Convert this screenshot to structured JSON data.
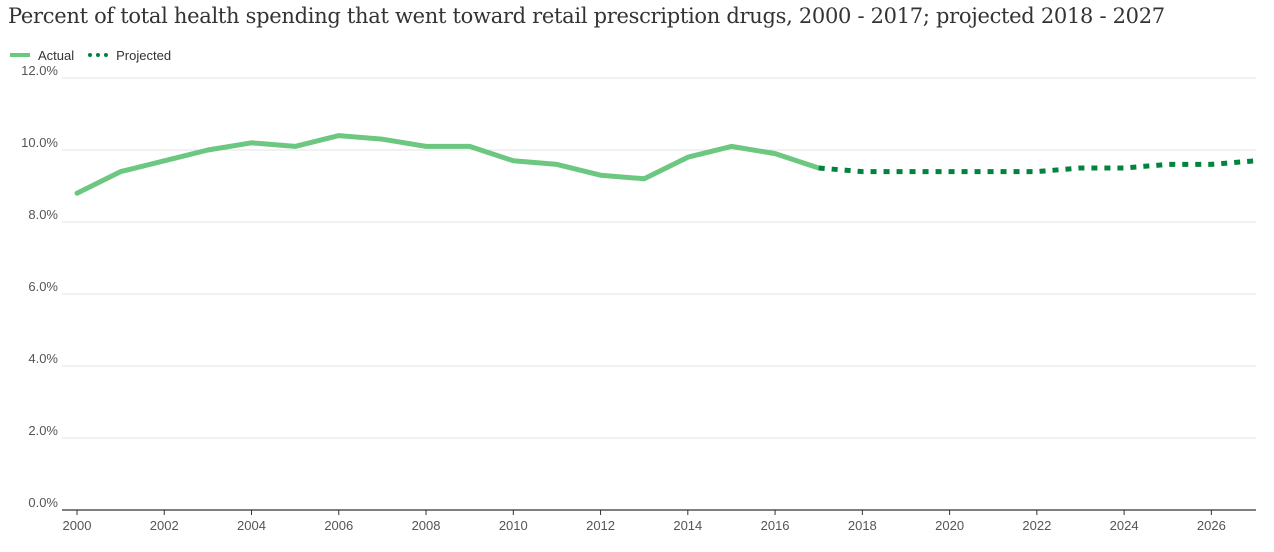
{
  "chart_data": {
    "type": "line",
    "title": "Percent of total health spending that went toward retail prescription drugs, 2000 - 2017; projected 2018 - 2027",
    "xlabel": "",
    "ylabel": "",
    "ylim": [
      0,
      12
    ],
    "xlim": [
      2000,
      2027
    ],
    "grid": true,
    "legend_placement": "top-left",
    "y_ticks": [
      "0.0%",
      "2.0%",
      "4.0%",
      "6.0%",
      "8.0%",
      "10.0%",
      "12.0%"
    ],
    "x_ticks": [
      "2000",
      "2002",
      "2004",
      "2006",
      "2008",
      "2010",
      "2012",
      "2014",
      "2016",
      "2018",
      "2020",
      "2022",
      "2024",
      "2026"
    ],
    "series": [
      {
        "name": "Actual",
        "color": "#6cc780",
        "style": "solid",
        "x": [
          2000,
          2001,
          2002,
          2003,
          2004,
          2005,
          2006,
          2007,
          2008,
          2009,
          2010,
          2011,
          2012,
          2013,
          2014,
          2015,
          2016,
          2017
        ],
        "values": [
          8.8,
          9.4,
          9.7,
          10.0,
          10.2,
          10.1,
          10.4,
          10.3,
          10.1,
          10.1,
          9.7,
          9.6,
          9.3,
          9.2,
          9.8,
          10.1,
          9.9,
          9.5
        ]
      },
      {
        "name": "Projected",
        "color": "#00843d",
        "style": "dotted",
        "x": [
          2017,
          2018,
          2019,
          2020,
          2021,
          2022,
          2023,
          2024,
          2025,
          2026,
          2027
        ],
        "values": [
          9.5,
          9.4,
          9.4,
          9.4,
          9.4,
          9.4,
          9.5,
          9.5,
          9.6,
          9.6,
          9.7
        ]
      }
    ]
  }
}
